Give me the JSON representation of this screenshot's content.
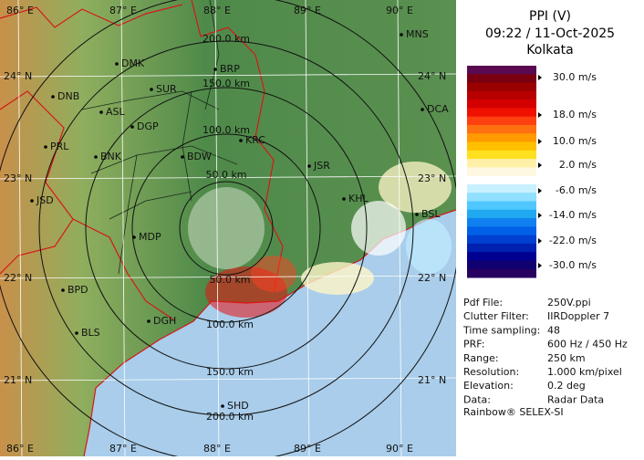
{
  "header": {
    "title": "PPI (V)",
    "time": "09:22 / 11-Oct-2025",
    "station": "Kolkata"
  },
  "legend": {
    "labels": [
      "30.0 m/s",
      "18.0 m/s",
      "10.0 m/s",
      "2.0 m/s",
      "-6.0 m/s",
      "-14.0 m/s",
      "-22.0 m/s",
      "-30.0 m/s"
    ]
  },
  "map": {
    "lon_labels": [
      "86° E",
      "87° E",
      "88° E",
      "89° E",
      "90° E"
    ],
    "lat_labels": [
      "24° N",
      "23° N",
      "22° N",
      "21° N"
    ],
    "range_labels": [
      "50.0 km",
      "100.0 km",
      "150.0 km",
      "200.0 km"
    ],
    "cities": [
      "MNS",
      "DMK",
      "BRP",
      "DNB",
      "SUR",
      "ASL",
      "DGP",
      "KRC",
      "DCA",
      "PRL",
      "BNK",
      "BDW",
      "JSR",
      "JSD",
      "KHL",
      "BSL",
      "MDP",
      "BPD",
      "DGH",
      "BLS",
      "SHD"
    ]
  },
  "info": {
    "rows": [
      [
        "Pdf File:",
        "250V.ppi"
      ],
      [
        "Clutter Filter:",
        "IIRDoppler 7"
      ],
      [
        "Time sampling:",
        "48"
      ],
      [
        "PRF:",
        "600 Hz / 450 Hz"
      ],
      [
        "Range:",
        "250 km"
      ],
      [
        "Resolution:",
        "1.000 km/pixel"
      ],
      [
        "Elevation:",
        "0.2 deg"
      ],
      [
        "Data:",
        "Radar Data"
      ]
    ]
  },
  "footer": "Rainbow® SELEX-SI"
}
